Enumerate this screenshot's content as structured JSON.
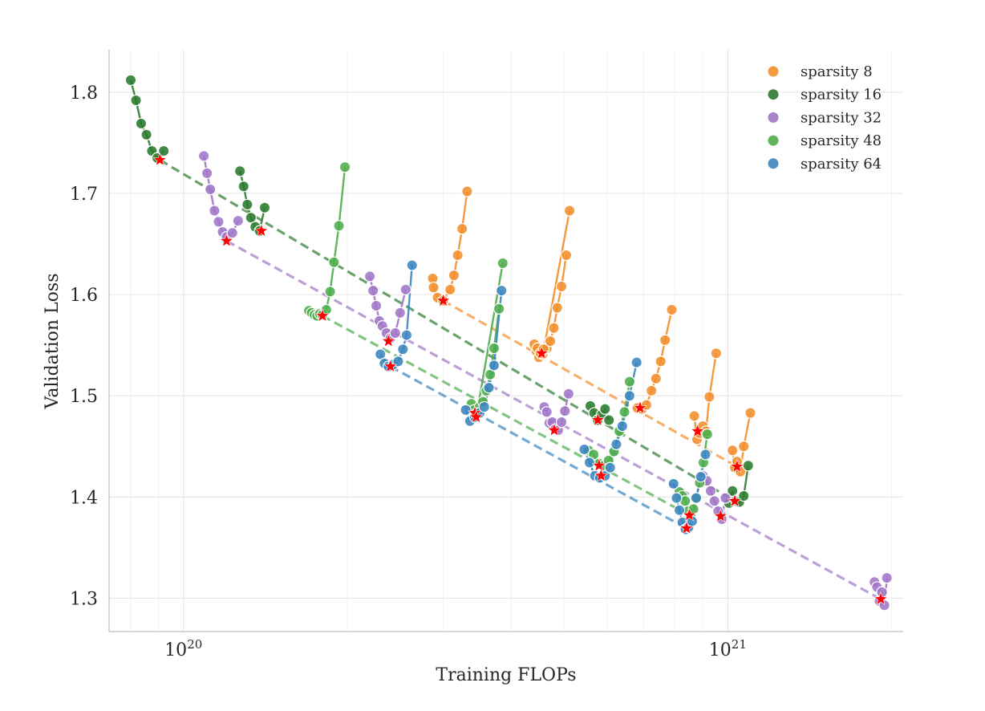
{
  "chart_data": {
    "type": "scatter",
    "title": "",
    "xlabel": "Training FLOPs",
    "ylabel": "Validation Loss",
    "xscale": "log",
    "xlim": [
      7.3e+19,
      2.1e+21
    ],
    "ylim": [
      1.267,
      1.842
    ],
    "xticks": [
      {
        "value": 1e+20,
        "base": "10",
        "exp": "20"
      },
      {
        "value": 1e+21,
        "base": "10",
        "exp": "21"
      }
    ],
    "yticks": [
      1.3,
      1.4,
      1.5,
      1.6,
      1.7,
      1.8
    ],
    "grid": true,
    "legend_position": "top-right",
    "series": [
      {
        "name": "sparsity 8",
        "color": "#f28e2b",
        "curves": [
          {
            "x": [
              2.87e+20,
              2.88e+20,
              2.93e+20,
              3e+20,
              3.09e+20,
              3.14e+20,
              3.19e+20,
              3.25e+20,
              3.32e+20
            ],
            "y": [
              1.616,
              1.607,
              1.597,
              1.594,
              1.605,
              1.619,
              1.639,
              1.665,
              1.702
            ]
          },
          {
            "x": [
              4.41e+20,
              4.45e+20,
              4.5e+20,
              4.57e+20,
              4.65e+20,
              4.72e+20,
              4.79e+20,
              4.86e+20,
              4.95e+20,
              5.05e+20
            ],
            "y": [
              1.551,
              1.544,
              1.538,
              1.541,
              1.547,
              1.554,
              1.567,
              1.587,
              1.608,
              1.639
            ]
          },
          {
            "x": [
              4.47e+20,
              4.53e+20,
              4.59e+20,
              5.12e+20
            ],
            "y": [
              1.547,
              1.542,
              1.546,
              1.683
            ]
          },
          {
            "x": [
              6.82e+20,
              6.96e+20,
              7.09e+20,
              7.24e+20,
              7.38e+20,
              7.53e+20,
              7.67e+20,
              7.89e+20
            ],
            "y": [
              1.488,
              1.487,
              1.491,
              1.505,
              1.517,
              1.534,
              1.555,
              1.585
            ]
          },
          {
            "x": [
              8.68e+20,
              8.78e+20,
              8.88e+20,
              9e+20,
              9.12e+20,
              9.25e+20,
              9.52e+20
            ],
            "y": [
              1.48,
              1.457,
              1.463,
              1.47,
              1.465,
              1.499,
              1.542
            ]
          },
          {
            "x": [
              1.02e+21,
              1.03e+21,
              1.04e+21,
              1.055e+21,
              1.07e+21,
              1.1e+21
            ],
            "y": [
              1.446,
              1.429,
              1.435,
              1.425,
              1.45,
              1.483
            ]
          }
        ],
        "optima": {
          "x": [
            3e+20,
            4.55e+20,
            6.9e+20,
            8.8e+20,
            1.04e+21
          ],
          "y": [
            1.594,
            1.542,
            1.488,
            1.465,
            1.43
          ]
        }
      },
      {
        "name": "sparsity 16",
        "color": "#2a7a2e",
        "curves": [
          {
            "x": [
              8e+19,
              8.18e+19,
              8.36e+19,
              8.55e+19,
              8.75e+19,
              8.95e+19,
              9.2e+19
            ],
            "y": [
              1.812,
              1.792,
              1.769,
              1.758,
              1.742,
              1.735,
              1.742
            ]
          },
          {
            "x": [
              1.27e+20,
              1.29e+20,
              1.31e+20,
              1.33e+20,
              1.355e+20,
              1.38e+20,
              1.41e+20
            ],
            "y": [
              1.722,
              1.707,
              1.689,
              1.676,
              1.667,
              1.663,
              1.686
            ]
          },
          {
            "x": [
              5.59e+20,
              5.68e+20,
              5.77e+20,
              5.86e+20,
              5.95e+20,
              6.05e+20
            ],
            "y": [
              1.49,
              1.483,
              1.476,
              1.481,
              1.487,
              1.476
            ]
          },
          {
            "x": [
              1.005e+21,
              1.02e+21,
              1.035e+21,
              1.05e+21,
              1.07e+21,
              1.09e+21
            ],
            "y": [
              1.394,
              1.406,
              1.396,
              1.395,
              1.401,
              1.431
            ]
          }
        ],
        "optima": {
          "x": [
            9.05e+19,
            1.39e+20,
            5.77e+20,
            1.03e+21
          ],
          "y": [
            1.733,
            1.663,
            1.476,
            1.396
          ]
        }
      },
      {
        "name": "sparsity 32",
        "color": "#a176c8",
        "curves": [
          {
            "x": [
              1.09e+20,
              1.105e+20,
              1.12e+20,
              1.14e+20,
              1.16e+20,
              1.18e+20,
              1.2e+20,
              1.23e+20,
              1.26e+20
            ],
            "y": [
              1.737,
              1.72,
              1.704,
              1.683,
              1.672,
              1.662,
              1.657,
              1.661,
              1.673
            ]
          },
          {
            "x": [
              2.2e+20,
              2.23e+20,
              2.26e+20,
              2.29e+20,
              2.32e+20,
              2.36e+20,
              2.4e+20,
              2.45e+20,
              2.5e+20,
              2.56e+20
            ],
            "y": [
              1.618,
              1.604,
              1.589,
              1.574,
              1.569,
              1.562,
              1.557,
              1.562,
              1.582,
              1.605
            ]
          },
          {
            "x": [
              4.6e+20,
              4.65e+20,
              4.7e+20,
              4.76e+20,
              4.82e+20,
              4.88e+20,
              4.95e+20,
              5.02e+20,
              5.1e+20
            ],
            "y": [
              1.489,
              1.484,
              1.473,
              1.474,
              1.467,
              1.466,
              1.474,
              1.485,
              1.502
            ]
          },
          {
            "x": [
              9e+20,
              9.15e+20,
              9.3e+20,
              9.45e+20,
              9.6e+20,
              9.75e+20,
              9.9e+20
            ],
            "y": [
              1.421,
              1.416,
              1.406,
              1.396,
              1.386,
              1.378,
              1.399
            ]
          },
          {
            "x": [
              1.86e+21,
              1.88e+21,
              1.9e+21,
              1.92e+21,
              1.94e+21,
              1.96e+21
            ],
            "y": [
              1.316,
              1.311,
              1.297,
              1.306,
              1.293,
              1.32
            ]
          }
        ],
        "optima": {
          "x": [
            1.2e+20,
            2.38e+20,
            4.8e+20,
            9.7e+20,
            1.91e+21
          ],
          "y": [
            1.653,
            1.554,
            1.466,
            1.381,
            1.299
          ]
        }
      },
      {
        "name": "sparsity 48",
        "color": "#4dad4a",
        "curves": [
          {
            "x": [
              1.7e+20,
              1.72e+20,
              1.74e+20,
              1.76e+20,
              1.78e+20,
              1.8e+20,
              1.83e+20,
              1.86e+20,
              1.89e+20,
              1.93e+20,
              1.98e+20
            ],
            "y": [
              1.584,
              1.582,
              1.58,
              1.579,
              1.581,
              1.58,
              1.585,
              1.603,
              1.632,
              1.668,
              1.726
            ]
          },
          {
            "x": [
              3.38e+20,
              3.42e+20,
              3.46e+20,
              3.5e+20,
              3.55e+20,
              3.6e+20,
              3.66e+20,
              3.72e+20,
              3.8e+20
            ],
            "y": [
              1.492,
              1.486,
              1.483,
              1.489,
              1.494,
              1.505,
              1.521,
              1.547,
              1.586
            ]
          },
          {
            "x": [
              3.46e+20,
              3.86e+20
            ],
            "y": [
              1.483,
              1.631
            ]
          },
          {
            "x": [
              5.55e+20,
              5.67e+20,
              5.8e+20,
              5.92e+20,
              6.04e+20,
              6.18e+20,
              6.32e+20,
              6.46e+20,
              6.6e+20
            ],
            "y": [
              1.446,
              1.442,
              1.433,
              1.431,
              1.436,
              1.445,
              1.465,
              1.484,
              1.514
            ]
          },
          {
            "x": [
              8.15e+20,
              8.25e+20,
              8.35e+20,
              8.45e+20,
              8.55e+20,
              8.65e+20,
              8.75e+20,
              8.88e+20,
              9.02e+20,
              9.17e+20
            ],
            "y": [
              1.405,
              1.401,
              1.396,
              1.386,
              1.381,
              1.388,
              1.399,
              1.414,
              1.434,
              1.462
            ]
          }
        ],
        "optima": {
          "x": [
            1.8e+20,
            3.43e+20,
            5.8e+20,
            8.5e+20
          ],
          "y": [
            1.579,
            1.483,
            1.431,
            1.382
          ]
        }
      },
      {
        "name": "sparsity 64",
        "color": "#3b85be",
        "curves": [
          {
            "x": [
              2.3e+20,
              2.34e+20,
              2.38e+20,
              2.43e+20,
              2.48e+20,
              2.53e+20,
              2.57e+20,
              2.63e+20
            ],
            "y": [
              1.541,
              1.532,
              1.529,
              1.531,
              1.534,
              1.546,
              1.56,
              1.629
            ]
          },
          {
            "x": [
              3.3e+20,
              3.36e+20,
              3.43e+20,
              3.5e+20,
              3.57e+20,
              3.64e+20,
              3.72e+20,
              3.84e+20
            ],
            "y": [
              1.486,
              1.475,
              1.479,
              1.483,
              1.489,
              1.508,
              1.53,
              1.604
            ]
          },
          {
            "x": [
              5.45e+20,
              5.57e+20,
              5.7e+20,
              5.82e+20,
              5.95e+20,
              6.08e+20,
              6.24e+20,
              6.4e+20,
              6.6e+20,
              6.8e+20
            ],
            "y": [
              1.447,
              1.434,
              1.421,
              1.419,
              1.421,
              1.429,
              1.452,
              1.47,
              1.5,
              1.533
            ]
          },
          {
            "x": [
              7.95e+20,
              8.05e+20,
              8.15e+20,
              8.25e+20,
              8.36e+20,
              8.47e+20,
              8.6e+20,
              8.75e+20,
              8.92e+20,
              9.1e+20
            ],
            "y": [
              1.413,
              1.399,
              1.387,
              1.375,
              1.368,
              1.37,
              1.376,
              1.399,
              1.42,
              1.442
            ]
          }
        ],
        "optima": {
          "x": [
            2.4e+20,
            3.45e+20,
            5.85e+20,
            8.4e+20
          ],
          "y": [
            1.529,
            1.479,
            1.421,
            1.369
          ]
        }
      }
    ],
    "trend_lines": [
      {
        "series": "sparsity 8",
        "x": [
          3e+20,
          1.04e+21
        ],
        "y": [
          1.594,
          1.43
        ]
      },
      {
        "series": "sparsity 16",
        "x": [
          9.05e+19,
          1.03e+21
        ],
        "y": [
          1.733,
          1.396
        ]
      },
      {
        "series": "sparsity 32",
        "x": [
          1.2e+20,
          1.91e+21
        ],
        "y": [
          1.653,
          1.299
        ]
      },
      {
        "series": "sparsity 48",
        "x": [
          1.8e+20,
          8.5e+20
        ],
        "y": [
          1.579,
          1.382
        ]
      },
      {
        "series": "sparsity 64",
        "x": [
          2.4e+20,
          8.4e+20
        ],
        "y": [
          1.529,
          1.369
        ]
      }
    ],
    "optimum_marker": {
      "shape": "star",
      "color": "#ff0000"
    }
  }
}
